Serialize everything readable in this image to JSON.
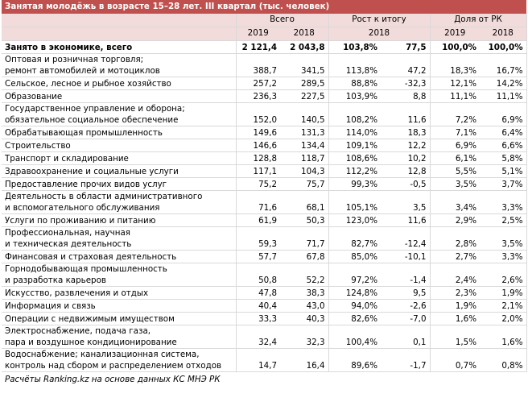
{
  "title": "Занятая молодёжь в возрасте 15–28 лет. III квартал (тыс. человек)",
  "table": {
    "group_headers": [
      "Всего",
      "Рост к итогу",
      "Доля от РК"
    ],
    "year_headers": [
      "2019",
      "2018",
      "2018",
      "2019",
      "2018"
    ],
    "rows": [
      [
        "Занято в экономике, всего",
        "2 121,4",
        "2 043,8",
        "103,8%",
        "77,5",
        "100,0%",
        "100,0%"
      ],
      [
        "Оптовая и розничная торговля;\nремонт автомобилей и мотоциклов",
        "388,7",
        "341,5",
        "113,8%",
        "47,2",
        "18,3%",
        "16,7%"
      ],
      [
        "Сельское, лесное и рыбное хозяйство",
        "257,2",
        "289,5",
        "88,8%",
        "-32,3",
        "12,1%",
        "14,2%"
      ],
      [
        "Образование",
        "236,3",
        "227,5",
        "103,9%",
        "8,8",
        "11,1%",
        "11,1%"
      ],
      [
        "Государственное управление и оборона;\nобязательное социальное обеспечение",
        "152,0",
        "140,5",
        "108,2%",
        "11,6",
        "7,2%",
        "6,9%"
      ],
      [
        "Обрабатывающая промышленность",
        "149,6",
        "131,3",
        "114,0%",
        "18,3",
        "7,1%",
        "6,4%"
      ],
      [
        "Строительство",
        "146,6",
        "134,4",
        "109,1%",
        "12,2",
        "6,9%",
        "6,6%"
      ],
      [
        "Транспорт и складирование",
        "128,8",
        "118,7",
        "108,6%",
        "10,2",
        "6,1%",
        "5,8%"
      ],
      [
        "Здравоохранение и социальные услуги",
        "117,1",
        "104,3",
        "112,2%",
        "12,8",
        "5,5%",
        "5,1%"
      ],
      [
        "Предоставление прочих видов услуг",
        "75,2",
        "75,7",
        "99,3%",
        "-0,5",
        "3,5%",
        "3,7%"
      ],
      [
        "Деятельность в области административного\nи вспомогательного обслуживания",
        "71,6",
        "68,1",
        "105,1%",
        "3,5",
        "3,4%",
        "3,3%"
      ],
      [
        "Услуги по проживанию и питанию",
        "61,9",
        "50,3",
        "123,0%",
        "11,6",
        "2,9%",
        "2,5%"
      ],
      [
        "Профессиональная, научная\nи техническая деятельность",
        "59,3",
        "71,7",
        "82,7%",
        "-12,4",
        "2,8%",
        "3,5%"
      ],
      [
        "Финансовая и страховая деятельность",
        "57,7",
        "67,8",
        "85,0%",
        "-10,1",
        "2,7%",
        "3,3%"
      ],
      [
        "Горнодобывающая промышленность\nи разработка карьеров",
        "50,8",
        "52,2",
        "97,2%",
        "-1,4",
        "2,4%",
        "2,6%"
      ],
      [
        "Искусство, развлечения и отдых",
        "47,8",
        "38,3",
        "124,8%",
        "9,5",
        "2,3%",
        "1,9%"
      ],
      [
        "Информация и связь",
        "40,4",
        "43,0",
        "94,0%",
        "-2,6",
        "1,9%",
        "2,1%"
      ],
      [
        "Операции с недвижимым имуществом",
        "33,3",
        "40,3",
        "82,6%",
        "-7,0",
        "1,6%",
        "2,0%"
      ],
      [
        "Электроснабжение, подача газа,\nпара и воздушное кондиционирование",
        "32,4",
        "32,3",
        "100,4%",
        "0,1",
        "1,5%",
        "1,6%"
      ],
      [
        "Водоснабжение; канализационная система,\nконтроль над сбором и распределением отходов",
        "14,7",
        "16,4",
        "89,6%",
        "-1,7",
        "0,7%",
        "0,8%"
      ]
    ]
  },
  "footer": "Расчёты Ranking.kz на основе данных КС МНЭ РК"
}
